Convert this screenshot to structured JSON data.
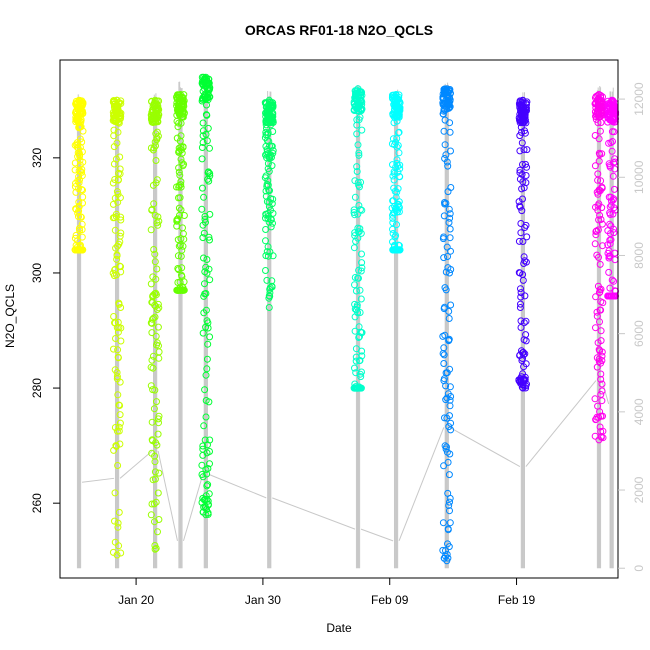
{
  "chart_data": {
    "type": "scatter",
    "title": "ORCAS RF01-18 N2O_QCLS",
    "xlabel": "Date",
    "ylabel": "N2O_QCLS",
    "xlim": [
      "2016-01-14",
      "2016-02-27"
    ],
    "ylim": [
      247,
      337
    ],
    "x_ticks": [
      {
        "date": "2016-01-20",
        "label": "Jan 20"
      },
      {
        "date": "2016-01-30",
        "label": "Jan 30"
      },
      {
        "date": "2016-02-09",
        "label": "Feb 09"
      },
      {
        "date": "2016-02-19",
        "label": "Feb 19"
      }
    ],
    "y_ticks": [
      260,
      280,
      300,
      320
    ],
    "y2_ticks": [
      0,
      2000,
      4000,
      6000,
      8000,
      10000,
      12000
    ],
    "y2lim": [
      -250,
      13000
    ],
    "grid": false,
    "marker": "open-circle",
    "altitude_color": "#c8c8c8",
    "series": [
      {
        "date": "2016-01-15",
        "color": "#FFFF00",
        "n2o_min": 304,
        "n2o_max": 330,
        "n2o_core": [
          304,
          330
        ],
        "altitude_peak": 12200,
        "altitude_base": 2200
      },
      {
        "date": "2016-01-18",
        "color": "#CCFF00",
        "n2o_min": 251,
        "n2o_max": 330,
        "n2o_core": [
          280,
          330
        ],
        "altitude_peak": 12100,
        "altitude_base": 2300
      },
      {
        "date": "2016-01-21",
        "color": "#99FF00",
        "n2o_min": 252,
        "n2o_max": 330,
        "n2o_core": [
          270,
          330
        ],
        "altitude_peak": 12200,
        "altitude_base": 3000
      },
      {
        "date": "2016-01-23",
        "color": "#66FF00",
        "n2o_min": 297,
        "n2o_max": 331,
        "n2o_core": [
          297,
          331
        ],
        "altitude_peak": 12500,
        "altitude_base": 700
      },
      {
        "date": "2016-01-25",
        "color": "#00FF33",
        "n2o_min": 258,
        "n2o_max": 334,
        "n2o_core": [
          262,
          334
        ],
        "altitude_peak": 12600,
        "altitude_base": 2400
      },
      {
        "date": "2016-01-30",
        "color": "#00FF66",
        "n2o_min": 294,
        "n2o_max": 330,
        "n2o_core": [
          312,
          330
        ],
        "altitude_peak": 12300,
        "altitude_base": 1800
      },
      {
        "date": "2016-02-06",
        "color": "#00FFCC",
        "n2o_min": 280,
        "n2o_max": 332,
        "n2o_core": [
          280,
          332
        ],
        "altitude_peak": 12400,
        "altitude_base": 1000
      },
      {
        "date": "2016-02-09",
        "color": "#00FFFF",
        "n2o_min": 304,
        "n2o_max": 331,
        "n2o_core": [
          304,
          331
        ],
        "altitude_peak": 12300,
        "altitude_base": 700
      },
      {
        "date": "2016-02-13",
        "color": "#0088FF",
        "n2o_min": 250,
        "n2o_max": 332,
        "n2o_core": [
          268,
          332
        ],
        "altitude_peak": 12500,
        "altitude_base": 3600
      },
      {
        "date": "2016-02-19",
        "color": "#4400FF",
        "n2o_min": 280,
        "n2o_max": 330,
        "n2o_core": [
          282,
          330
        ],
        "altitude_peak": 12200,
        "altitude_base": 2600
      },
      {
        "date": "2016-02-25",
        "color": "#FF00EE",
        "n2o_min": 271,
        "n2o_max": 331,
        "n2o_core": [
          282,
          331
        ],
        "altitude_peak": 12400,
        "altitude_base": 4800
      },
      {
        "date": "2016-02-26",
        "color": "#FF00FF",
        "n2o_min": 296,
        "n2o_max": 330,
        "n2o_core": [
          296,
          330
        ],
        "altitude_peak": 12300,
        "altitude_base": 4200
      }
    ]
  }
}
